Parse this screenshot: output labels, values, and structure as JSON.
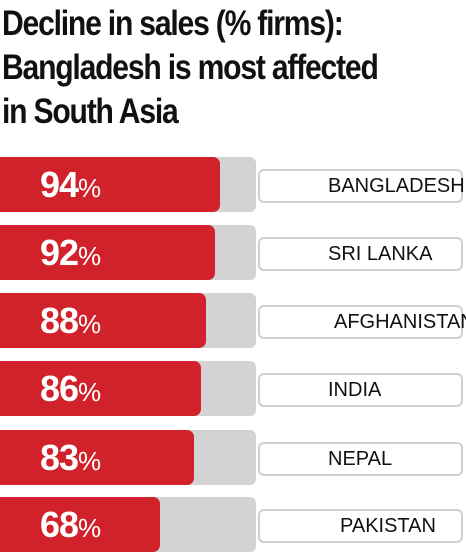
{
  "title": {
    "line1": "Decline in sales (% firms):",
    "line2": "Bangladesh is most affected",
    "line3": "in South Asia"
  },
  "chart_data": {
    "type": "bar",
    "orientation": "horizontal",
    "title": "Decline in sales (% firms): Bangladesh is most affected in South Asia",
    "categories": [
      "BANGLADESH",
      "SRI LANKA",
      "AFGHANISTAN",
      "INDIA",
      "NEPAL",
      "PAKISTAN"
    ],
    "values": [
      94,
      92,
      88,
      86,
      83,
      68
    ],
    "value_suffix": "%",
    "xlim": [
      0,
      100
    ],
    "grid": false,
    "legend": "none",
    "colors": {
      "bar": "#d1222b",
      "track": "#d3d3d3",
      "label_border": "#cfcfcf"
    }
  }
}
